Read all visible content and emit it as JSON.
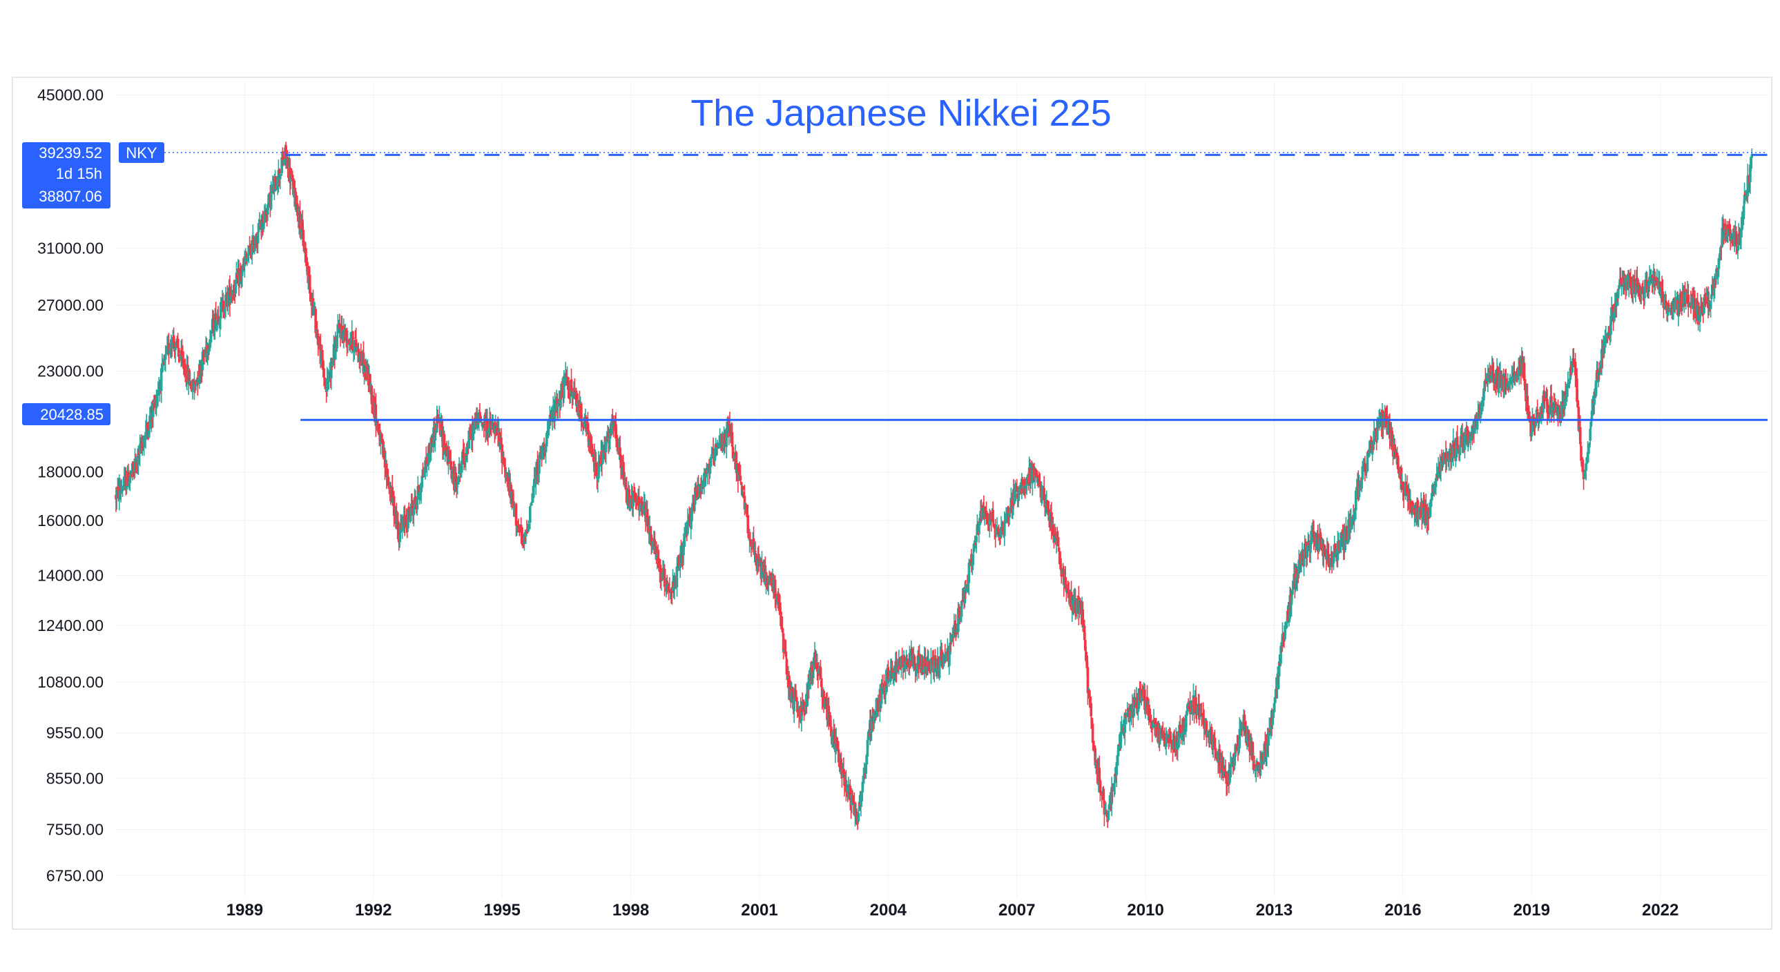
{
  "chart_data": {
    "type": "candlestick",
    "title": "The Japanese Nikkei 225",
    "symbol": "NKY",
    "scale": "log",
    "ylim": [
      6400,
      46500
    ],
    "xlim": [
      1986.0,
      2024.5
    ],
    "y_ticks": [
      "45000.00",
      "31000.00",
      "27000.00",
      "23000.00",
      "18000.00",
      "16000.00",
      "14000.00",
      "12400.00",
      "10800.00",
      "9550.00",
      "8550.00",
      "7550.00",
      "6750.00"
    ],
    "x_ticks": [
      "1989",
      "1992",
      "1995",
      "1998",
      "2001",
      "2004",
      "2007",
      "2010",
      "2013",
      "2016",
      "2019",
      "2022"
    ],
    "price_tag": {
      "high": "39239.52",
      "countdown": "1d 15h",
      "close": "38807.06"
    },
    "horizontal_level": {
      "label": "20428.85",
      "value": 20428.85,
      "from_year": 1990.3
    },
    "peak_line_value": 38900,
    "grid": true,
    "colors": {
      "up": "#26a69a",
      "down": "#f23645",
      "line": "#2962ff",
      "title": "#2962ff",
      "tag": "#2962ff"
    },
    "anchors": [
      [
        1986.0,
        17000
      ],
      [
        1986.4,
        18000
      ],
      [
        1986.8,
        20500
      ],
      [
        1987.3,
        25000
      ],
      [
        1987.8,
        22000
      ],
      [
        1988.3,
        26000
      ],
      [
        1988.9,
        29000
      ],
      [
        1989.4,
        33000
      ],
      [
        1989.95,
        38900
      ],
      [
        1990.3,
        33000
      ],
      [
        1990.7,
        25000
      ],
      [
        1990.9,
        22000
      ],
      [
        1991.2,
        25500
      ],
      [
        1991.6,
        24500
      ],
      [
        1991.9,
        22500
      ],
      [
        1992.3,
        18000
      ],
      [
        1992.6,
        15500
      ],
      [
        1993.0,
        16800
      ],
      [
        1993.5,
        20500
      ],
      [
        1993.9,
        17500
      ],
      [
        1994.4,
        20500
      ],
      [
        1994.9,
        19800
      ],
      [
        1995.2,
        17000
      ],
      [
        1995.5,
        15000
      ],
      [
        1995.8,
        18000
      ],
      [
        1996.2,
        20800
      ],
      [
        1996.5,
        22500
      ],
      [
        1996.9,
        20500
      ],
      [
        1997.2,
        18000
      ],
      [
        1997.6,
        20200
      ],
      [
        1997.9,
        17000
      ],
      [
        1998.3,
        16500
      ],
      [
        1998.7,
        14000
      ],
      [
        1999.0,
        13500
      ],
      [
        1999.5,
        17000
      ],
      [
        1999.9,
        18500
      ],
      [
        2000.3,
        20000
      ],
      [
        2000.6,
        17000
      ],
      [
        2000.9,
        14500
      ],
      [
        2001.4,
        13500
      ],
      [
        2001.7,
        10500
      ],
      [
        2002.0,
        10000
      ],
      [
        2002.3,
        11500
      ],
      [
        2002.7,
        9500
      ],
      [
        2003.0,
        8500
      ],
      [
        2003.3,
        7800
      ],
      [
        2003.6,
        9800
      ],
      [
        2004.0,
        11000
      ],
      [
        2004.5,
        11500
      ],
      [
        2004.9,
        11200
      ],
      [
        2005.4,
        11500
      ],
      [
        2005.8,
        13500
      ],
      [
        2006.2,
        16500
      ],
      [
        2006.6,
        15500
      ],
      [
        2007.0,
        17200
      ],
      [
        2007.4,
        18000
      ],
      [
        2007.8,
        16000
      ],
      [
        2008.2,
        13200
      ],
      [
        2008.5,
        13000
      ],
      [
        2008.8,
        9000
      ],
      [
        2009.1,
        7800
      ],
      [
        2009.5,
        9800
      ],
      [
        2009.9,
        10500
      ],
      [
        2010.3,
        9500
      ],
      [
        2010.7,
        9300
      ],
      [
        2011.1,
        10300
      ],
      [
        2011.5,
        9500
      ],
      [
        2011.9,
        8500
      ],
      [
        2012.3,
        9800
      ],
      [
        2012.6,
        8700
      ],
      [
        2012.9,
        9500
      ],
      [
        2013.2,
        12000
      ],
      [
        2013.5,
        14000
      ],
      [
        2013.9,
        15500
      ],
      [
        2014.3,
        14500
      ],
      [
        2014.7,
        15500
      ],
      [
        2015.0,
        17500
      ],
      [
        2015.4,
        20000
      ],
      [
        2015.6,
        20500
      ],
      [
        2015.9,
        18000
      ],
      [
        2016.2,
        16500
      ],
      [
        2016.6,
        16200
      ],
      [
        2016.9,
        18500
      ],
      [
        2017.3,
        19200
      ],
      [
        2017.7,
        20200
      ],
      [
        2018.0,
        23000
      ],
      [
        2018.4,
        22200
      ],
      [
        2018.8,
        23500
      ],
      [
        2018.95,
        20000
      ],
      [
        2019.3,
        21300
      ],
      [
        2019.7,
        21000
      ],
      [
        2020.0,
        23500
      ],
      [
        2020.2,
        17500
      ],
      [
        2020.5,
        22500
      ],
      [
        2020.8,
        25500
      ],
      [
        2021.1,
        28800
      ],
      [
        2021.6,
        28000
      ],
      [
        2021.9,
        28500
      ],
      [
        2022.2,
        26500
      ],
      [
        2022.6,
        27500
      ],
      [
        2022.9,
        26500
      ],
      [
        2023.2,
        27500
      ],
      [
        2023.5,
        33000
      ],
      [
        2023.8,
        31500
      ],
      [
        2024.0,
        35500
      ],
      [
        2024.15,
        38700
      ]
    ]
  }
}
